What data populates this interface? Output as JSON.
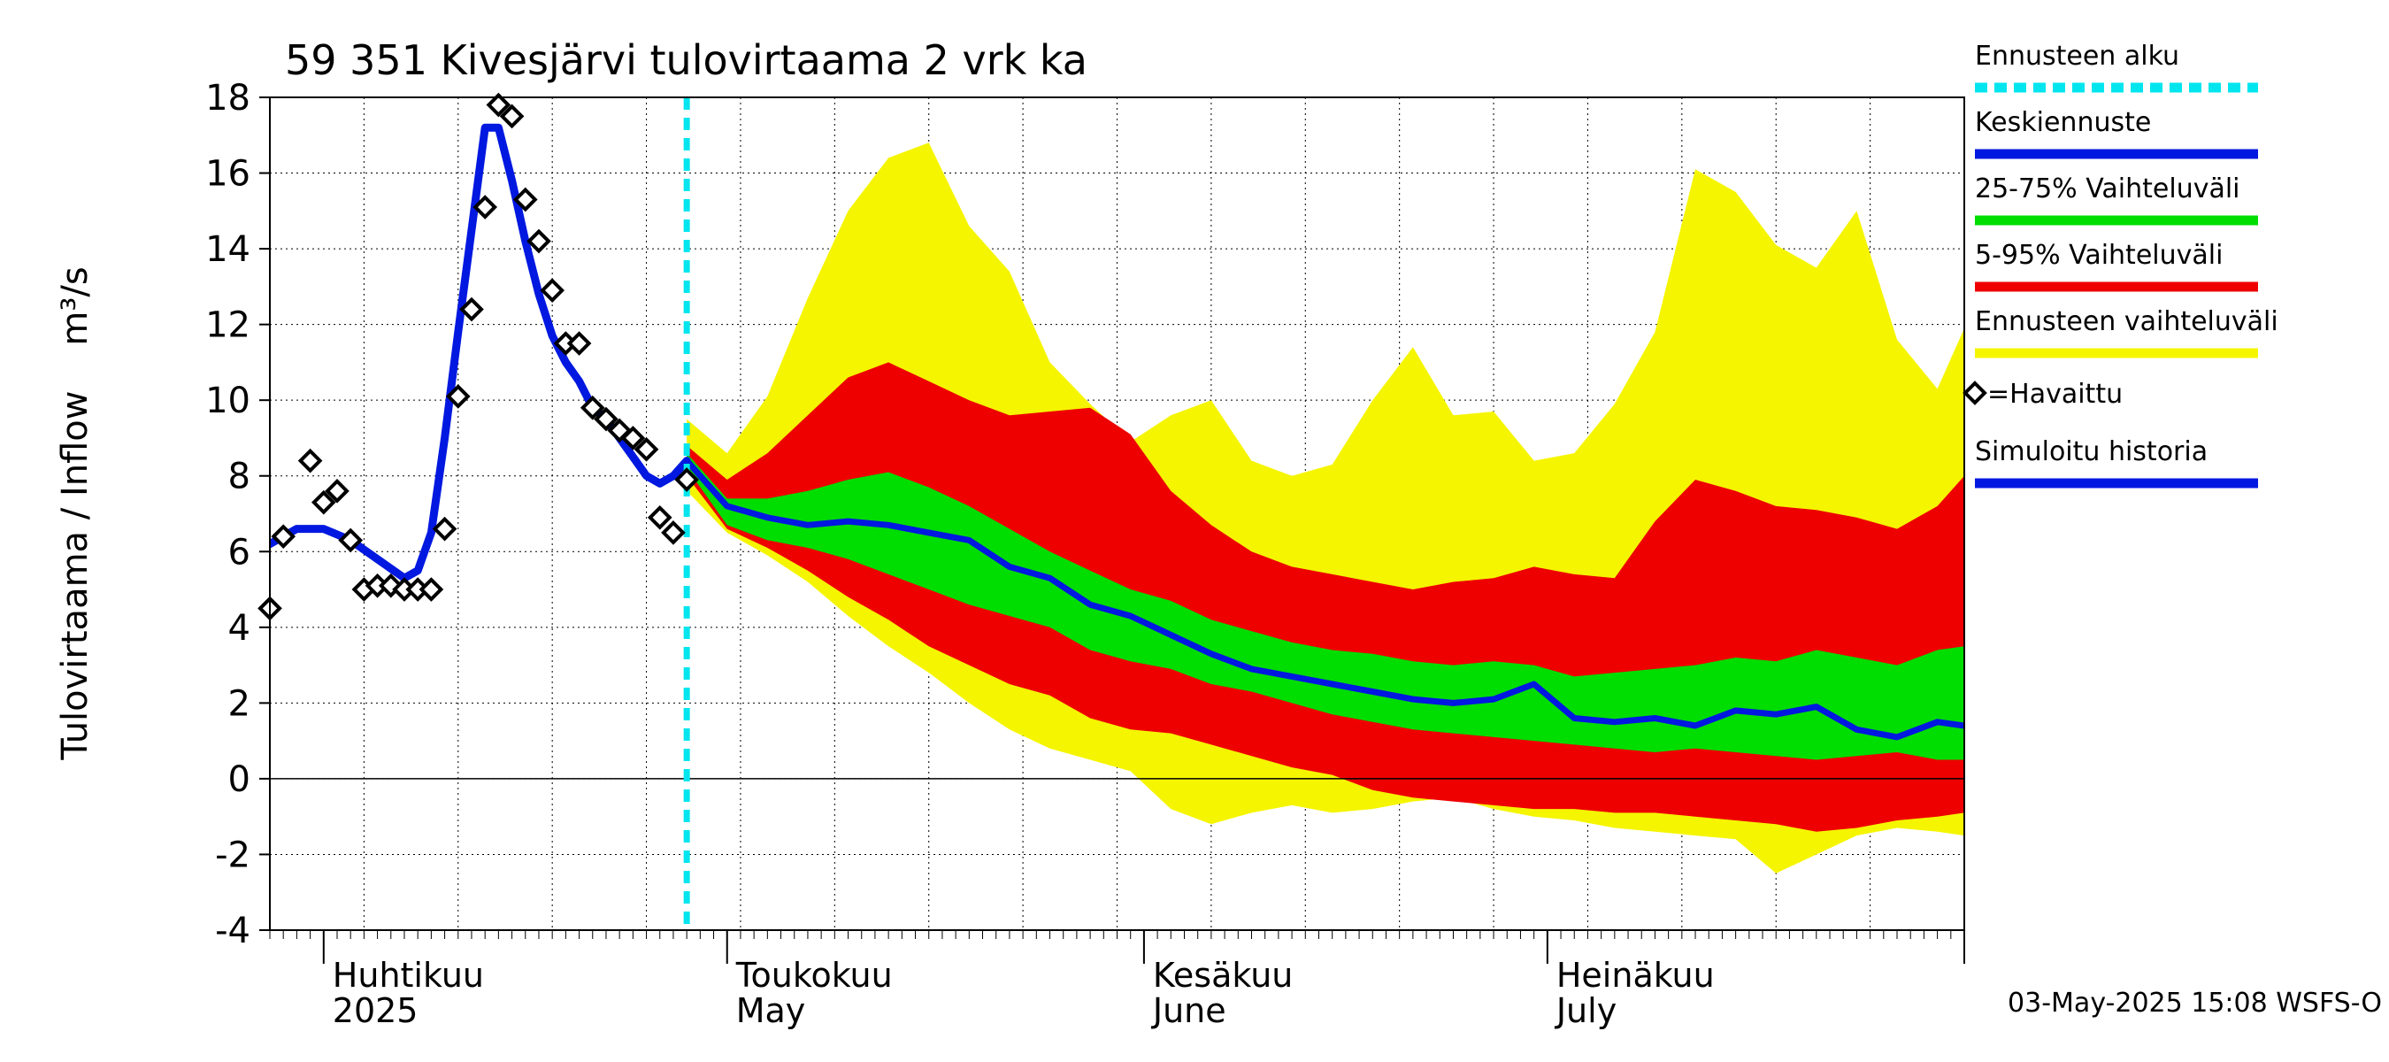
{
  "chart_data": {
    "type": "area",
    "title": "59 351 Kivesjärvi tulovirtaama 2 vrk ka",
    "ylabel": "Tulovirtaama / Inflow    m³/s",
    "ylim": [
      -4,
      18
    ],
    "yticks": [
      -4,
      -2,
      0,
      2,
      4,
      6,
      8,
      10,
      12,
      14,
      16,
      18
    ],
    "xlim": [
      "2025-03-28",
      "2025-08-01"
    ],
    "x_month_labels": [
      {
        "date": "2025-04-01",
        "line1": "Huhtikuu",
        "line2": "2025"
      },
      {
        "date": "2025-05-01",
        "line1": "Toukokuu",
        "line2": "May"
      },
      {
        "date": "2025-06-01",
        "line1": "Kesäkuu",
        "line2": "June"
      },
      {
        "date": "2025-07-01",
        "line1": "Heinäkuu",
        "line2": "July"
      }
    ],
    "forecast_start": "2025-04-28",
    "timestamp": "03-May-2025 15:08 WSFS-O",
    "legend": {
      "placement": "right",
      "items": [
        {
          "label": "Ennusteen alku",
          "color": "#00e5ee",
          "style": "dashed"
        },
        {
          "label": "Keskiennuste",
          "color": "#0018e0",
          "style": "solid"
        },
        {
          "label": "25-75% Vaihteluväli",
          "color": "#00dd00",
          "style": "solid"
        },
        {
          "label": "5-95% Vaihteluväli",
          "color": "#ee0000",
          "style": "solid"
        },
        {
          "label": "Ennusteen vaihteluväli",
          "color": "#f5f500",
          "style": "solid"
        },
        {
          "label": "=Havaittu",
          "color": "#000000",
          "style": "marker"
        },
        {
          "label": "Simuloitu historia",
          "color": "#0018e0",
          "style": "solid"
        }
      ]
    },
    "colors": {
      "simulated": "#0018e0",
      "median": "#0018e0",
      "p25_75": "#00dd00",
      "p5_95": "#ee0000",
      "full_range": "#f5f500",
      "forecast_start": "#00e5ee",
      "observed": "#000000"
    },
    "observed": {
      "x": [
        "2025-03-28",
        "2025-03-29",
        "2025-03-31",
        "2025-04-01",
        "2025-04-02",
        "2025-04-03",
        "2025-04-04",
        "2025-04-05",
        "2025-04-06",
        "2025-04-07",
        "2025-04-08",
        "2025-04-09",
        "2025-04-10",
        "2025-04-11",
        "2025-04-12",
        "2025-04-13",
        "2025-04-14",
        "2025-04-15",
        "2025-04-16",
        "2025-04-17",
        "2025-04-18",
        "2025-04-19",
        "2025-04-20",
        "2025-04-21",
        "2025-04-22",
        "2025-04-23",
        "2025-04-24",
        "2025-04-25",
        "2025-04-26",
        "2025-04-27",
        "2025-04-28"
      ],
      "y": [
        4.5,
        6.4,
        8.4,
        7.3,
        7.6,
        6.3,
        5.0,
        5.1,
        5.1,
        5.0,
        5.0,
        5.0,
        6.6,
        10.1,
        12.4,
        15.1,
        17.8,
        17.5,
        15.3,
        14.2,
        12.9,
        11.5,
        11.5,
        9.8,
        9.5,
        9.2,
        9.0,
        8.7,
        6.9,
        6.5,
        7.9
      ]
    },
    "simulated_history": {
      "x": [
        "2025-03-28",
        "2025-03-30",
        "2025-04-01",
        "2025-04-03",
        "2025-04-05",
        "2025-04-07",
        "2025-04-08",
        "2025-04-09",
        "2025-04-10",
        "2025-04-11",
        "2025-04-12",
        "2025-04-13",
        "2025-04-14",
        "2025-04-15",
        "2025-04-16",
        "2025-04-17",
        "2025-04-18",
        "2025-04-19",
        "2025-04-20",
        "2025-04-21",
        "2025-04-22",
        "2025-04-23",
        "2025-04-24",
        "2025-04-25",
        "2025-04-26",
        "2025-04-27",
        "2025-04-28"
      ],
      "y": [
        6.2,
        6.6,
        6.6,
        6.3,
        5.8,
        5.3,
        5.5,
        6.5,
        9.0,
        11.8,
        14.5,
        17.2,
        17.2,
        15.8,
        14.2,
        12.8,
        11.7,
        11.0,
        10.5,
        9.8,
        9.5,
        9.0,
        8.5,
        8.0,
        7.8,
        8.0,
        8.4
      ]
    },
    "forecast": {
      "x": [
        "2025-04-28",
        "2025-05-01",
        "2025-05-04",
        "2025-05-07",
        "2025-05-10",
        "2025-05-13",
        "2025-05-16",
        "2025-05-19",
        "2025-05-22",
        "2025-05-25",
        "2025-05-28",
        "2025-05-31",
        "2025-06-03",
        "2025-06-06",
        "2025-06-09",
        "2025-06-12",
        "2025-06-15",
        "2025-06-18",
        "2025-06-21",
        "2025-06-24",
        "2025-06-27",
        "2025-06-30",
        "2025-07-03",
        "2025-07-06",
        "2025-07-09",
        "2025-07-12",
        "2025-07-15",
        "2025-07-18",
        "2025-07-21",
        "2025-07-24",
        "2025-07-27",
        "2025-07-30",
        "2025-08-01"
      ],
      "median": [
        8.4,
        7.2,
        6.9,
        6.7,
        6.8,
        6.7,
        6.5,
        6.3,
        5.6,
        5.3,
        4.6,
        4.3,
        3.8,
        3.3,
        2.9,
        2.7,
        2.5,
        2.3,
        2.1,
        2.0,
        2.1,
        2.5,
        1.6,
        1.5,
        1.6,
        1.4,
        1.8,
        1.7,
        1.9,
        1.3,
        1.1,
        1.5,
        1.4
      ],
      "p25": [
        8.2,
        6.7,
        6.3,
        6.1,
        5.8,
        5.4,
        5.0,
        4.6,
        4.3,
        4.0,
        3.4,
        3.1,
        2.9,
        2.5,
        2.3,
        2.0,
        1.7,
        1.5,
        1.3,
        1.2,
        1.1,
        1.0,
        0.9,
        0.8,
        0.7,
        0.8,
        0.7,
        0.6,
        0.5,
        0.6,
        0.7,
        0.5,
        0.5
      ],
      "p75": [
        8.6,
        7.4,
        7.4,
        7.6,
        7.9,
        8.1,
        7.7,
        7.2,
        6.6,
        6.0,
        5.5,
        5.0,
        4.7,
        4.2,
        3.9,
        3.6,
        3.4,
        3.3,
        3.1,
        3.0,
        3.1,
        3.0,
        2.7,
        2.8,
        2.9,
        3.0,
        3.2,
        3.1,
        3.4,
        3.2,
        3.0,
        3.4,
        3.5
      ],
      "p5": [
        8.0,
        6.6,
        6.1,
        5.5,
        4.8,
        4.2,
        3.5,
        3.0,
        2.5,
        2.2,
        1.6,
        1.3,
        1.2,
        0.9,
        0.6,
        0.3,
        0.1,
        -0.3,
        -0.5,
        -0.6,
        -0.7,
        -0.8,
        -0.8,
        -0.9,
        -0.9,
        -1.0,
        -1.1,
        -1.2,
        -1.4,
        -1.3,
        -1.1,
        -1.0,
        -0.9
      ],
      "p95": [
        8.8,
        7.9,
        8.6,
        9.6,
        10.6,
        11.0,
        10.5,
        10.0,
        9.6,
        9.7,
        9.8,
        9.1,
        7.6,
        6.7,
        6.0,
        5.6,
        5.4,
        5.2,
        5.0,
        5.2,
        5.3,
        5.6,
        5.4,
        5.3,
        6.8,
        7.9,
        7.6,
        7.2,
        7.1,
        6.9,
        6.6,
        7.2,
        8.0
      ],
      "min": [
        7.6,
        6.5,
        5.9,
        5.2,
        4.3,
        3.5,
        2.8,
        2.0,
        1.3,
        0.8,
        0.5,
        0.2,
        -0.8,
        -1.2,
        -0.9,
        -0.7,
        -0.9,
        -0.8,
        -0.6,
        -0.5,
        -0.8,
        -1.0,
        -1.1,
        -1.3,
        -1.4,
        -1.5,
        -1.6,
        -2.5,
        -2.0,
        -1.5,
        -1.3,
        -1.4,
        -1.5
      ],
      "max": [
        9.5,
        8.6,
        10.1,
        12.7,
        15.0,
        16.4,
        16.8,
        14.6,
        13.4,
        11.0,
        9.9,
        8.9,
        9.6,
        10.0,
        8.4,
        8.0,
        8.3,
        10.0,
        11.4,
        9.6,
        9.7,
        8.4,
        8.6,
        9.9,
        11.8,
        16.1,
        15.5,
        14.1,
        13.5,
        15.0,
        11.6,
        10.3,
        11.9
      ]
    }
  }
}
